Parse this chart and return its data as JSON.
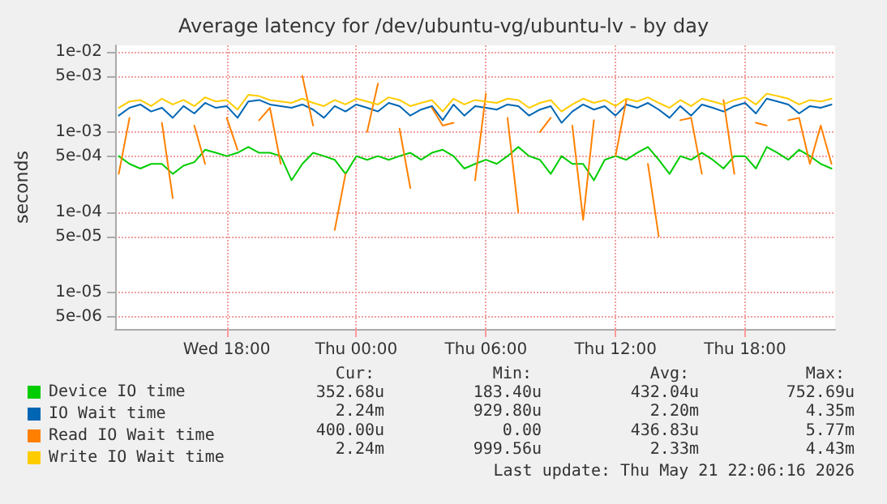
{
  "chart_data": {
    "type": "line",
    "title": "Average latency for /dev/ubuntu-vg/ubuntu-lv - by day",
    "ylabel": "seconds",
    "x": [
      "2026-05-20T13:00",
      "2026-05-20T13:30",
      "2026-05-20T14:00",
      "2026-05-20T14:30",
      "2026-05-20T15:00",
      "2026-05-20T15:30",
      "2026-05-20T16:00",
      "2026-05-20T16:30",
      "2026-05-20T17:00",
      "2026-05-20T17:30",
      "2026-05-20T18:00",
      "2026-05-20T18:30",
      "2026-05-20T19:00",
      "2026-05-20T19:30",
      "2026-05-20T20:00",
      "2026-05-20T20:30",
      "2026-05-20T21:00",
      "2026-05-20T21:30",
      "2026-05-20T22:00",
      "2026-05-20T22:30",
      "2026-05-20T23:00",
      "2026-05-20T23:30",
      "2026-05-21T00:00",
      "2026-05-21T00:30",
      "2026-05-21T01:00",
      "2026-05-21T01:30",
      "2026-05-21T02:00",
      "2026-05-21T02:30",
      "2026-05-21T03:00",
      "2026-05-21T03:30",
      "2026-05-21T04:00",
      "2026-05-21T04:30",
      "2026-05-21T05:00",
      "2026-05-21T05:30",
      "2026-05-21T06:00",
      "2026-05-21T06:30",
      "2026-05-21T07:00",
      "2026-05-21T07:30",
      "2026-05-21T08:00",
      "2026-05-21T08:30",
      "2026-05-21T09:00",
      "2026-05-21T09:30",
      "2026-05-21T10:00",
      "2026-05-21T10:30",
      "2026-05-21T11:00",
      "2026-05-21T11:30",
      "2026-05-21T12:00",
      "2026-05-21T12:30",
      "2026-05-21T13:00",
      "2026-05-21T13:30",
      "2026-05-21T14:00",
      "2026-05-21T14:30",
      "2026-05-21T15:00",
      "2026-05-21T15:30",
      "2026-05-21T16:00",
      "2026-05-21T16:30",
      "2026-05-21T17:00",
      "2026-05-21T17:30",
      "2026-05-21T18:00",
      "2026-05-21T18:30",
      "2026-05-21T19:00",
      "2026-05-21T19:30",
      "2026-05-21T20:00",
      "2026-05-21T20:30",
      "2026-05-21T21:00",
      "2026-05-21T21:30",
      "2026-05-21T22:00"
    ],
    "series": [
      {
        "name": "Device IO time",
        "color": "#00cc00",
        "values": [
          0.0005,
          0.0004,
          0.00035,
          0.0004,
          0.0004,
          0.0003,
          0.00038,
          0.00042,
          0.0006,
          0.00055,
          0.0005,
          0.00055,
          0.00065,
          0.00055,
          0.00055,
          0.0005,
          0.00025,
          0.0004,
          0.00055,
          0.0005,
          0.00045,
          0.0003,
          0.0005,
          0.00045,
          0.0005,
          0.00045,
          0.0005,
          0.00055,
          0.00045,
          0.00055,
          0.0006,
          0.0005,
          0.00035,
          0.0004,
          0.00045,
          0.0004,
          0.0005,
          0.00065,
          0.0005,
          0.00045,
          0.0003,
          0.0005,
          0.0004,
          0.0004,
          0.00025,
          0.00045,
          0.0005,
          0.00045,
          0.00055,
          0.00065,
          0.00045,
          0.0003,
          0.0005,
          0.00045,
          0.00055,
          0.00045,
          0.00035,
          0.0005,
          0.0005,
          0.00035,
          0.00065,
          0.00055,
          0.00045,
          0.0006,
          0.0005,
          0.0004,
          0.00035
        ]
      },
      {
        "name": "IO Wait time",
        "color": "#0066b3",
        "values": [
          0.0016,
          0.002,
          0.0022,
          0.0018,
          0.002,
          0.0015,
          0.0021,
          0.0017,
          0.0023,
          0.002,
          0.0021,
          0.0015,
          0.0024,
          0.0025,
          0.0022,
          0.0021,
          0.002,
          0.0022,
          0.0019,
          0.0015,
          0.0021,
          0.0018,
          0.0022,
          0.002,
          0.0018,
          0.0023,
          0.0021,
          0.0016,
          0.0019,
          0.0021,
          0.0014,
          0.0022,
          0.0016,
          0.0021,
          0.002,
          0.0019,
          0.0022,
          0.0021,
          0.0016,
          0.0019,
          0.0021,
          0.0013,
          0.0018,
          0.0022,
          0.0019,
          0.0021,
          0.0016,
          0.0022,
          0.002,
          0.0023,
          0.0019,
          0.0015,
          0.0021,
          0.0016,
          0.0022,
          0.002,
          0.0018,
          0.0021,
          0.0023,
          0.0017,
          0.0026,
          0.0024,
          0.0022,
          0.0017,
          0.0021,
          0.002,
          0.0022
        ]
      },
      {
        "name": "Read IO Wait time",
        "color": "#ff8000",
        "values": [
          0.0003,
          0.0015,
          null,
          null,
          0.0013,
          0.00015,
          null,
          0.0012,
          0.0004,
          null,
          0.0015,
          0.0006,
          null,
          0.0014,
          0.002,
          0.0004,
          null,
          0.005,
          0.0012,
          null,
          6e-05,
          0.0003,
          null,
          0.001,
          0.004,
          null,
          0.0011,
          0.0002,
          null,
          0.002,
          0.0012,
          0.0013,
          null,
          0.00025,
          0.003,
          null,
          0.0015,
          0.0001,
          null,
          0.001,
          0.0015,
          null,
          0.0012,
          8e-05,
          0.0014,
          null,
          0.0005,
          0.0025,
          null,
          0.0004,
          5e-05,
          null,
          0.0014,
          0.0015,
          0.0003,
          null,
          0.0025,
          0.0003,
          null,
          0.0013,
          0.0012,
          null,
          0.0014,
          0.0015,
          0.0004,
          0.0012,
          0.0004
        ]
      },
      {
        "name": "Write IO Wait time",
        "color": "#ffcc00",
        "values": [
          0.002,
          0.0024,
          0.0025,
          0.0021,
          0.0026,
          0.0022,
          0.0025,
          0.0021,
          0.0027,
          0.0024,
          0.0025,
          0.0019,
          0.0029,
          0.0028,
          0.0025,
          0.0024,
          0.0023,
          0.0026,
          0.0023,
          0.0021,
          0.0025,
          0.0022,
          0.0026,
          0.0024,
          0.0022,
          0.0027,
          0.0025,
          0.0021,
          0.0023,
          0.0025,
          0.0018,
          0.0026,
          0.0022,
          0.0025,
          0.0024,
          0.0023,
          0.0026,
          0.0025,
          0.002,
          0.0023,
          0.0025,
          0.0018,
          0.0022,
          0.0026,
          0.0023,
          0.0025,
          0.0021,
          0.0026,
          0.0024,
          0.0027,
          0.0023,
          0.002,
          0.0025,
          0.0021,
          0.0026,
          0.0024,
          0.0022,
          0.0025,
          0.0027,
          0.0022,
          0.003,
          0.0028,
          0.0026,
          0.0022,
          0.0025,
          0.0024,
          0.0026
        ]
      }
    ],
    "log": "y",
    "ylim": [
      3.5e-06,
      0.012
    ],
    "yticks": [
      {
        "value": 0.01,
        "label": "1e-02"
      },
      {
        "value": 0.005,
        "label": "5e-03"
      },
      {
        "value": 0.001,
        "label": "1e-03"
      },
      {
        "value": 0.0005,
        "label": "5e-04"
      },
      {
        "value": 0.0001,
        "label": "1e-04"
      },
      {
        "value": 5e-05,
        "label": "5e-05"
      },
      {
        "value": 1e-05,
        "label": "1e-05"
      },
      {
        "value": 5e-06,
        "label": "5e-06"
      }
    ],
    "xlim": [
      "2026-05-20T12:50",
      "2026-05-21T22:10"
    ],
    "xticks": [
      {
        "value": "2026-05-20T18:00",
        "label": "Wed 18:00"
      },
      {
        "value": "2026-05-21T00:00",
        "label": "Thu 00:00"
      },
      {
        "value": "2026-05-21T06:00",
        "label": "Thu 06:00"
      },
      {
        "value": "2026-05-21T12:00",
        "label": "Thu 12:00"
      },
      {
        "value": "2026-05-21T18:00",
        "label": "Thu 18:00"
      }
    ],
    "grid": true,
    "legend": "bottom left",
    "marker": "none",
    "line_style": "solid",
    "annotations": [
      "Cur:",
      "Min:",
      "Avg:",
      "Max:",
      "352.68u",
      "183.40u",
      "432.04u",
      "752.69u",
      "2.24m",
      "929.80u",
      "2.20m",
      "4.35m",
      "400.00u",
      "0.00",
      "436.83u",
      "5.77m",
      "2.24m",
      "999.56u",
      "2.33m",
      "4.43m",
      "Last update: Thu May 21 22:06:16 2026"
    ]
  }
}
